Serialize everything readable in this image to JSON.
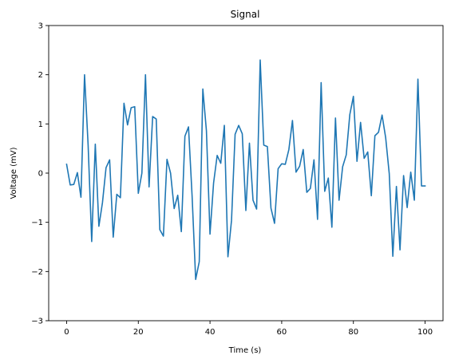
{
  "chart_data": {
    "type": "line",
    "title": "Signal",
    "xlabel": "Time (s)",
    "ylabel": "Voltage (mV)",
    "xlim": [
      -5,
      105
    ],
    "ylim": [
      -3,
      3
    ],
    "xticks": [
      0,
      20,
      40,
      60,
      80,
      100
    ],
    "yticks": [
      -3,
      -2,
      -1,
      0,
      1,
      2,
      3
    ],
    "grid": false,
    "line_color": "#1f77b4",
    "series": [
      {
        "x": [
          0,
          1,
          2,
          3,
          4,
          5,
          6,
          7,
          8,
          9,
          10,
          11,
          12,
          13,
          14,
          15,
          16,
          17,
          18,
          19,
          20,
          21,
          22,
          23,
          24,
          25,
          26,
          27,
          28,
          29,
          30,
          31,
          32,
          33,
          34,
          35,
          36,
          37,
          38,
          39,
          40,
          41,
          42,
          43,
          44,
          45,
          46,
          47,
          48,
          49,
          50,
          51,
          52,
          53,
          54,
          55,
          56,
          57,
          58,
          59,
          60,
          61,
          62,
          63,
          64,
          65,
          66,
          67,
          68,
          69,
          70,
          71,
          72,
          73,
          74,
          75,
          76,
          77,
          78,
          79,
          80,
          81,
          82,
          83,
          84,
          85,
          86,
          87,
          88,
          89,
          90,
          91,
          92,
          93,
          94,
          95,
          96,
          97,
          98,
          99,
          100
        ],
        "values": [
          0.18,
          -0.24,
          -0.23,
          0.01,
          -0.49,
          2.0,
          0.57,
          -1.39,
          0.59,
          -1.08,
          -0.6,
          0.11,
          0.27,
          -1.3,
          -0.43,
          -0.5,
          1.42,
          0.98,
          1.33,
          1.35,
          -0.41,
          0.0,
          2.0,
          -0.28,
          1.15,
          1.1,
          -1.15,
          -1.28,
          0.28,
          0.0,
          -0.72,
          -0.45,
          -1.19,
          0.75,
          0.94,
          -0.46,
          -2.16,
          -1.8,
          1.71,
          0.86,
          -1.24,
          -0.2,
          0.36,
          0.2,
          0.97,
          -1.7,
          -0.96,
          0.79,
          0.97,
          0.8,
          -0.76,
          0.61,
          -0.55,
          -0.73,
          2.3,
          0.57,
          0.54,
          -0.71,
          -1.02,
          0.09,
          0.19,
          0.18,
          0.48,
          1.07,
          0.02,
          0.14,
          0.48,
          -0.39,
          -0.31,
          0.27,
          -0.94,
          1.84,
          -0.37,
          -0.1,
          -1.1,
          1.12,
          -0.55,
          0.13,
          0.37,
          1.19,
          1.56,
          0.24,
          1.03,
          0.3,
          0.43,
          -0.46,
          0.76,
          0.83,
          1.18,
          0.72,
          -0.01,
          -1.69,
          -0.27,
          -1.56,
          -0.05,
          -0.7,
          0.02,
          -0.55,
          1.91,
          -0.26,
          -0.26
        ]
      }
    ]
  }
}
